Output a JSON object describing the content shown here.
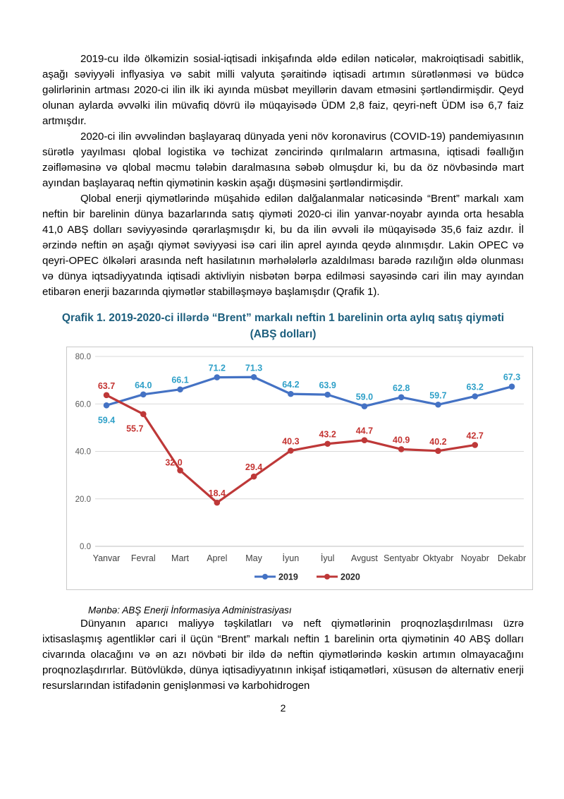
{
  "page": {
    "number": "2"
  },
  "paragraphs": [
    "2019-cu ildə ölkəmizin sosial-iqtisadi inkişafında əldə edilən nəticələr, makroiqtisadi sabitlik, aşağı səviyyəli inflyasiya və sabit milli valyuta şəraitində iqtisadi artımın sürətlənməsi və büdcə gəlirlərinin artması 2020-ci ilin ilk iki ayında müsbət meyillərin davam etməsini şərtləndirmişdir. Qeyd olunan aylarda əvvəlki ilin müvafiq dövrü ilə müqayisədə ÜDM 2,8 faiz, qeyri-neft ÜDM isə 6,7 faiz artmışdır.",
    "2020-ci ilin əvvəlindən başlayaraq dünyada yeni növ koronavirus (COVID-19) pandemiyasının sürətlə yayılması qlobal logistika və təchizat zəncirində qırılmaların artmasına, iqtisadi fəallığın zəifləməsinə və qlobal məcmu tələbin daralmasına səbəb olmuşdur ki, bu da öz növbəsində mart ayından başlayaraq neftin qiymətinin kəskin aşağı düşməsini şərtləndirmişdir.",
    "Qlobal enerji qiymətlərində müşahidə edilən dalğalanmalar nəticəsində “Brent” markalı xam neftin bir barelinin dünya bazarlarında satış qiyməti 2020-ci ilin yanvar-noyabr ayında orta hesabla 41,0 ABŞ dolları səviyyəsində qərarlaşmışdır ki, bu da ilin əvvəli ilə müqayisədə 35,6 faiz azdır. İl ərzində neftin ən aşağı qiymət səviyyəsi isə cari ilin aprel ayında qeydə alınmışdır. Lakin OPEC və qeyri-OPEC ölkələri arasında neft hasilatının mərhələlərlə azaldılması barədə razılığın əldə olunması və dünya iqtsadiyyatında iqtisadi aktivliyin nisbətən bərpa edilməsi sayəsində cari ilin may ayından etibarən enerji bazarında qiymətlər stabilləşməyə başlamışdır (Qrafik 1).",
    "Dünyanın aparıcı maliyyə təşkilatları və neft qiymətlərinin proqnozlaşdırılması üzrə ixtisaslaşmış agentliklər cari il üçün “Brent” markalı neftin 1 barelinin orta qiymətinin 40 ABŞ dolları civarında olacağını və ən azı növbəti bir ildə də neftin qiymətlərində kəskin artımın olmayacağını proqnozlaşdırırlar. Bütövlükdə, dünya iqtisadiyyatının inkişaf istiqamətləri, xüsusən də alternativ enerji resurslarından istifadənin genişlənməsi və karbohidrogen"
  ],
  "chart": {
    "title": "Qrafik 1. 2019-2020-ci illərdə “Brent” markalı neftin 1 barelinin orta aylıq satış qiyməti",
    "subtitle": "(ABŞ dolları)",
    "source_note": "Mənbə: ABŞ Enerji İnformasiya Administrasiyası"
  },
  "chart_data": {
    "type": "line",
    "title": "Qrafik 1. 2019-2020-ci illərdə “Brent” markalı neftin 1 barelinin orta aylıq satış qiyməti (ABŞ dolları)",
    "categories": [
      "Yanvar",
      "Fevral",
      "Mart",
      "Aprel",
      "May",
      "İyun",
      "İyul",
      "Avgust",
      "Sentyabr",
      "Oktyabr",
      "Noyabr",
      "Dekabr"
    ],
    "series": [
      {
        "name": "2019",
        "color": "#4472C4",
        "label_color": "#2FA0C8",
        "values": [
          59.4,
          64.0,
          66.1,
          71.2,
          71.3,
          64.2,
          63.9,
          59.0,
          62.8,
          59.7,
          63.2,
          67.3
        ]
      },
      {
        "name": "2020",
        "color": "#BE3838",
        "label_color": "#C43432",
        "values": [
          63.7,
          55.7,
          32.0,
          18.4,
          29.4,
          40.3,
          43.2,
          44.7,
          40.9,
          40.2,
          42.7,
          null
        ]
      }
    ],
    "ylim": [
      0,
      80
    ],
    "yticks": [
      0,
      20,
      40,
      60,
      80
    ],
    "ytick_labels": [
      "0.0",
      "20.0",
      "40.0",
      "60.0",
      "80.0"
    ],
    "grid": true,
    "legend_position": "bottom-inside",
    "label_offsets": {
      "2019": {
        "0": [
          0,
          25
        ]
      },
      "2020": {
        "1": [
          -12,
          25
        ],
        "2": [
          -9,
          -7
        ]
      }
    },
    "colors": {
      "gridline": "#D9D9D9",
      "axis_line": "#BFBFBF",
      "tick_label": "#595959",
      "category_label": "#3F3F3F",
      "legend_text": "#262626",
      "frame_border": "#C9C9C9",
      "title": "#1C5E7D"
    }
  }
}
